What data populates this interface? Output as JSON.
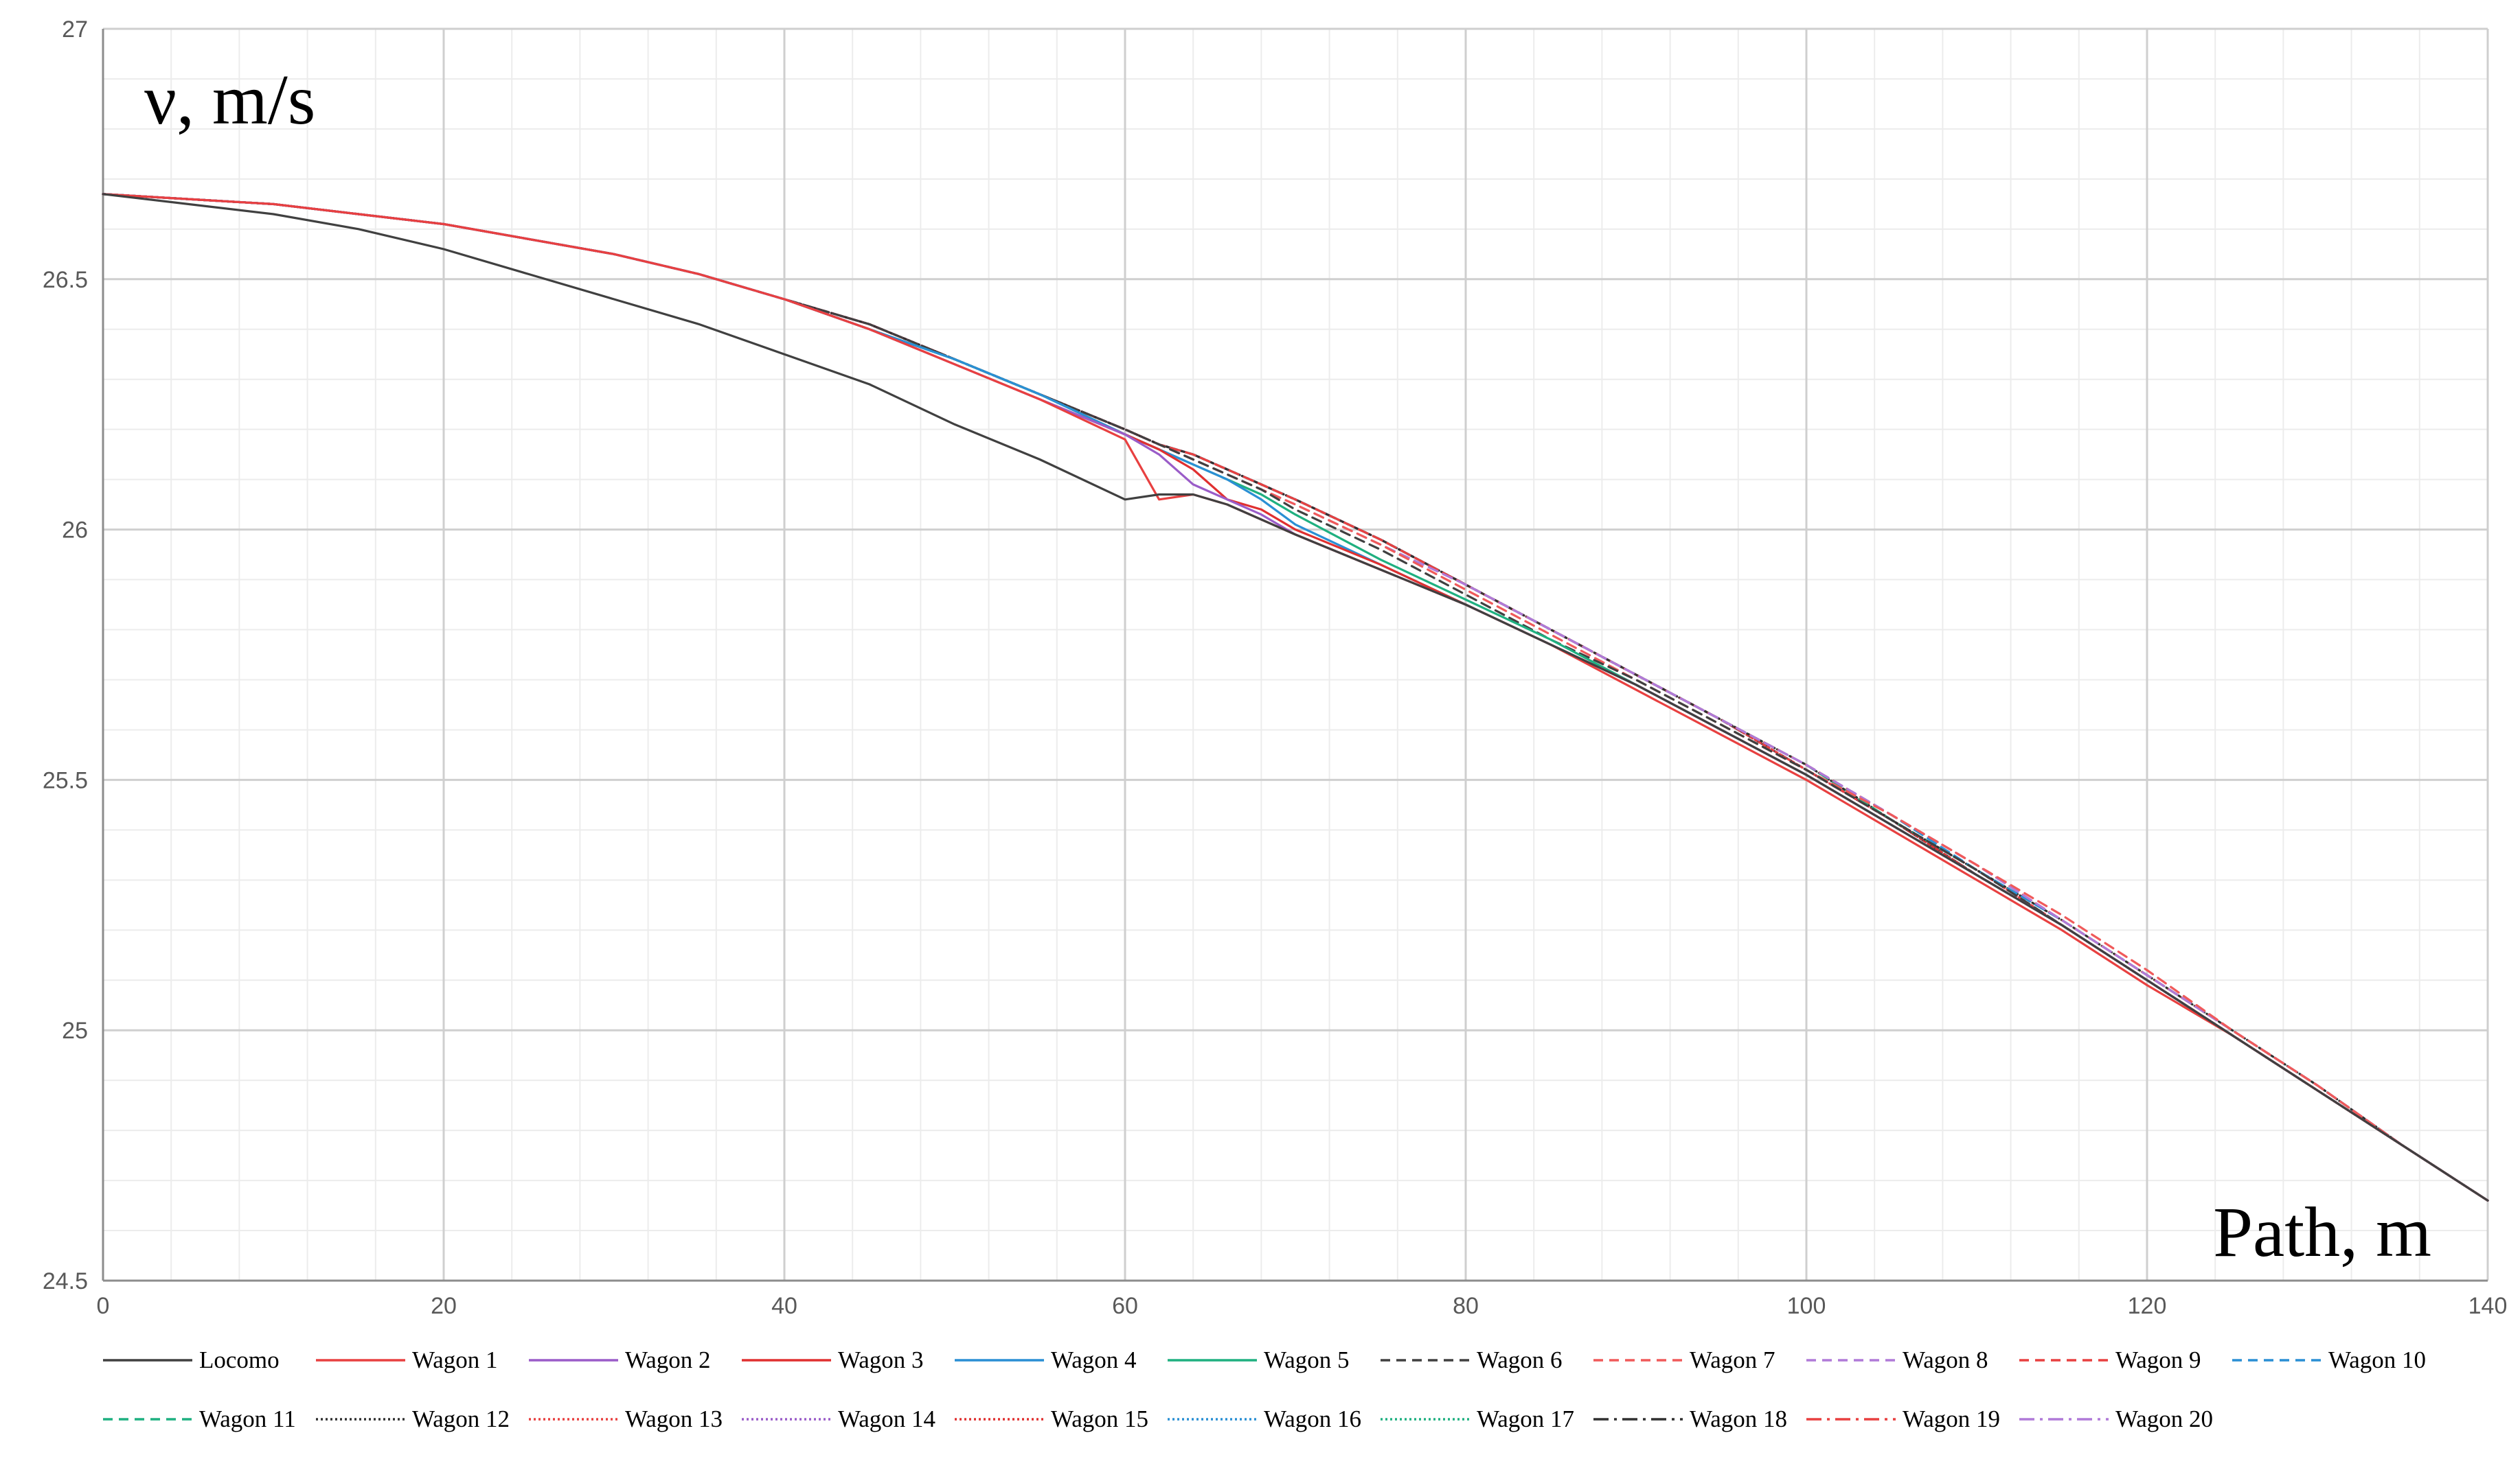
{
  "chart_data": {
    "type": "line",
    "title": "",
    "ylabel": "ν, m/s",
    "xlabel": "Path, m",
    "xlim": [
      0,
      140
    ],
    "ylim": [
      24.5,
      27
    ],
    "x_ticks": [
      0,
      20,
      40,
      60,
      80,
      100,
      120,
      140
    ],
    "y_ticks": [
      24.5,
      25,
      25.5,
      26,
      26.5,
      27
    ],
    "x_tick_labels": [
      "0",
      "20",
      "40",
      "60",
      "80",
      "100",
      "120",
      "140"
    ],
    "y_tick_labels": [
      "24.5",
      "25",
      "25.5",
      "26",
      "26.5",
      "27"
    ],
    "grid": true,
    "minor_grid": true,
    "legend_position": "bottom",
    "x": [
      0,
      5,
      10,
      15,
      20,
      25,
      30,
      35,
      40,
      45,
      50,
      55,
      60,
      62,
      64,
      66,
      68,
      70,
      75,
      80,
      85,
      90,
      95,
      100,
      105,
      110,
      115,
      120,
      125,
      130,
      135,
      140
    ],
    "series": [
      {
        "name": "Locomo",
        "color": "#404040",
        "dash": "",
        "values": [
          26.67,
          26.65,
          26.63,
          26.6,
          26.56,
          26.51,
          26.46,
          26.41,
          26.35,
          26.29,
          26.21,
          26.14,
          26.06,
          26.07,
          26.07,
          26.05,
          26.02,
          25.99,
          25.92,
          25.85,
          25.77,
          25.69,
          25.6,
          25.51,
          25.41,
          25.31,
          25.21,
          25.1,
          24.99,
          24.88,
          24.77,
          24.66
        ]
      },
      {
        "name": "Wagon 1",
        "color": "#e84040",
        "dash": "",
        "values": [
          26.67,
          26.66,
          26.65,
          26.63,
          26.61,
          26.58,
          26.55,
          26.51,
          26.46,
          26.4,
          26.33,
          26.26,
          26.18,
          26.06,
          26.07,
          26.05,
          26.02,
          25.99,
          25.92,
          25.85,
          25.77,
          25.68,
          25.59,
          25.5,
          25.4,
          25.3,
          25.2,
          25.09,
          24.99,
          24.88,
          24.77,
          24.66
        ]
      },
      {
        "name": "Wagon 2",
        "color": "#9a5cc8",
        "dash": "",
        "values": [
          26.67,
          26.66,
          26.65,
          26.63,
          26.61,
          26.58,
          26.55,
          26.51,
          26.46,
          26.4,
          26.33,
          26.26,
          26.19,
          26.15,
          26.09,
          26.06,
          26.03,
          25.99,
          25.92,
          25.85,
          25.77,
          25.69,
          25.6,
          25.51,
          25.41,
          25.31,
          25.21,
          25.1,
          24.99,
          24.88,
          24.77,
          24.66
        ]
      },
      {
        "name": "Wagon 3",
        "color": "#e03030",
        "dash": "",
        "values": [
          26.67,
          26.66,
          26.65,
          26.63,
          26.61,
          26.58,
          26.55,
          26.51,
          26.46,
          26.4,
          26.33,
          26.26,
          26.19,
          26.16,
          26.12,
          26.06,
          26.04,
          26.0,
          25.93,
          25.85,
          25.77,
          25.69,
          25.6,
          25.51,
          25.41,
          25.31,
          25.21,
          25.1,
          24.99,
          24.88,
          24.77,
          24.66
        ]
      },
      {
        "name": "Wagon 4",
        "color": "#2a8fd4",
        "dash": "",
        "values": [
          26.67,
          26.66,
          26.65,
          26.63,
          26.61,
          26.58,
          26.55,
          26.51,
          26.46,
          26.4,
          26.34,
          26.27,
          26.19,
          26.16,
          26.13,
          26.1,
          26.06,
          26.01,
          25.93,
          25.85,
          25.77,
          25.69,
          25.6,
          25.51,
          25.41,
          25.31,
          25.21,
          25.1,
          24.99,
          24.88,
          24.77,
          24.66
        ]
      },
      {
        "name": "Wagon 5",
        "color": "#1fb080",
        "dash": "",
        "values": [
          26.67,
          26.66,
          26.65,
          26.63,
          26.61,
          26.58,
          26.55,
          26.51,
          26.46,
          26.4,
          26.34,
          26.27,
          26.19,
          26.16,
          26.13,
          26.1,
          26.07,
          26.03,
          25.94,
          25.86,
          25.78,
          25.69,
          25.6,
          25.51,
          25.41,
          25.31,
          25.21,
          25.1,
          24.99,
          24.88,
          24.77,
          24.66
        ]
      },
      {
        "name": "Wagon 6",
        "color": "#404040",
        "dash": "14 9",
        "values": [
          26.67,
          26.66,
          26.65,
          26.63,
          26.61,
          26.58,
          26.55,
          26.51,
          26.46,
          26.41,
          26.34,
          26.27,
          26.2,
          26.17,
          26.14,
          26.11,
          26.08,
          26.04,
          25.96,
          25.87,
          25.78,
          25.7,
          25.61,
          25.52,
          25.42,
          25.32,
          25.21,
          25.1,
          24.99,
          24.88,
          24.77,
          24.66
        ]
      },
      {
        "name": "Wagon 7",
        "color": "#f05a5a",
        "dash": "14 9",
        "values": [
          26.67,
          26.66,
          26.65,
          26.63,
          26.61,
          26.58,
          26.55,
          26.51,
          26.46,
          26.41,
          26.34,
          26.27,
          26.2,
          26.17,
          26.14,
          26.11,
          26.08,
          26.05,
          25.97,
          25.88,
          25.79,
          25.7,
          25.61,
          25.52,
          25.43,
          25.33,
          25.23,
          25.12,
          25.0,
          24.89,
          24.77,
          24.66
        ]
      },
      {
        "name": "Wagon 8",
        "color": "#b07ad8",
        "dash": "14 9",
        "values": [
          26.67,
          26.66,
          26.65,
          26.63,
          26.61,
          26.58,
          26.55,
          26.51,
          26.46,
          26.41,
          26.34,
          26.27,
          26.2,
          26.17,
          26.14,
          26.11,
          26.08,
          26.05,
          25.97,
          25.89,
          25.8,
          25.71,
          25.62,
          25.53,
          25.43,
          25.33,
          25.22,
          25.11,
          25.0,
          24.89,
          24.77,
          24.66
        ]
      },
      {
        "name": "Wagon 9",
        "color": "#e84040",
        "dash": "14 9",
        "values": [
          26.67,
          26.66,
          26.65,
          26.63,
          26.61,
          26.58,
          26.55,
          26.51,
          26.46,
          26.41,
          26.34,
          26.27,
          26.2,
          26.17,
          26.15,
          26.12,
          26.09,
          26.06,
          25.98,
          25.89,
          25.8,
          25.71,
          25.62,
          25.53,
          25.43,
          25.33,
          25.22,
          25.11,
          25.0,
          24.89,
          24.77,
          24.66
        ]
      },
      {
        "name": "Wagon 10",
        "color": "#2a8fd4",
        "dash": "14 9",
        "values": [
          26.67,
          26.66,
          26.65,
          26.63,
          26.61,
          26.58,
          26.55,
          26.51,
          26.46,
          26.41,
          26.34,
          26.27,
          26.2,
          26.17,
          26.15,
          26.12,
          26.09,
          26.06,
          25.98,
          25.89,
          25.8,
          25.71,
          25.62,
          25.53,
          25.43,
          25.32,
          25.22,
          25.11,
          25.0,
          24.89,
          24.77,
          24.66
        ]
      },
      {
        "name": "Wagon 11",
        "color": "#1fb080",
        "dash": "14 9",
        "values": [
          26.67,
          26.66,
          26.65,
          26.63,
          26.61,
          26.58,
          26.55,
          26.51,
          26.46,
          26.41,
          26.34,
          26.27,
          26.2,
          26.17,
          26.15,
          26.12,
          26.09,
          26.06,
          25.98,
          25.89,
          25.8,
          25.71,
          25.62,
          25.53,
          25.42,
          25.32,
          25.22,
          25.11,
          25.0,
          24.89,
          24.77,
          24.66
        ]
      },
      {
        "name": "Wagon 12",
        "color": "#303030",
        "dash": "3 4",
        "values": [
          26.67,
          26.66,
          26.65,
          26.63,
          26.61,
          26.58,
          26.55,
          26.51,
          26.46,
          26.41,
          26.34,
          26.27,
          26.2,
          26.17,
          26.15,
          26.12,
          26.09,
          26.06,
          25.98,
          25.89,
          25.8,
          25.71,
          25.62,
          25.53,
          25.42,
          25.32,
          25.22,
          25.11,
          25.0,
          24.89,
          24.77,
          24.66
        ]
      },
      {
        "name": "Wagon 13",
        "color": "#e84040",
        "dash": "3 4",
        "values": [
          26.67,
          26.66,
          26.65,
          26.63,
          26.61,
          26.58,
          26.55,
          26.51,
          26.46,
          26.41,
          26.34,
          26.27,
          26.2,
          26.17,
          26.15,
          26.12,
          26.09,
          26.06,
          25.98,
          25.89,
          25.8,
          25.71,
          25.62,
          25.52,
          25.42,
          25.32,
          25.21,
          25.1,
          24.99,
          24.88,
          24.77,
          24.66
        ]
      },
      {
        "name": "Wagon 14",
        "color": "#9a5cc8",
        "dash": "3 4",
        "values": [
          26.67,
          26.66,
          26.65,
          26.63,
          26.61,
          26.58,
          26.55,
          26.51,
          26.46,
          26.41,
          26.34,
          26.27,
          26.2,
          26.17,
          26.15,
          26.12,
          26.09,
          26.06,
          25.98,
          25.89,
          25.8,
          25.71,
          25.62,
          25.52,
          25.42,
          25.32,
          25.21,
          25.1,
          24.99,
          24.88,
          24.77,
          24.66
        ]
      },
      {
        "name": "Wagon 15",
        "color": "#e03030",
        "dash": "3 4",
        "values": [
          26.67,
          26.66,
          26.65,
          26.63,
          26.61,
          26.58,
          26.55,
          26.51,
          26.46,
          26.41,
          26.34,
          26.27,
          26.2,
          26.17,
          26.15,
          26.12,
          26.09,
          26.06,
          25.98,
          25.89,
          25.8,
          25.71,
          25.62,
          25.52,
          25.42,
          25.31,
          25.21,
          25.1,
          24.99,
          24.88,
          24.77,
          24.66
        ]
      },
      {
        "name": "Wagon 16",
        "color": "#2a8fd4",
        "dash": "3 4",
        "values": [
          26.67,
          26.66,
          26.65,
          26.63,
          26.61,
          26.58,
          26.55,
          26.51,
          26.46,
          26.41,
          26.34,
          26.27,
          26.2,
          26.17,
          26.15,
          26.12,
          26.09,
          26.06,
          25.98,
          25.89,
          25.8,
          25.71,
          25.62,
          25.52,
          25.42,
          25.31,
          25.21,
          25.1,
          24.99,
          24.88,
          24.77,
          24.66
        ]
      },
      {
        "name": "Wagon 17",
        "color": "#1fb080",
        "dash": "3 4",
        "values": [
          26.67,
          26.66,
          26.65,
          26.63,
          26.61,
          26.58,
          26.55,
          26.51,
          26.46,
          26.41,
          26.34,
          26.27,
          26.2,
          26.17,
          26.15,
          26.12,
          26.09,
          26.06,
          25.98,
          25.89,
          25.8,
          25.71,
          25.62,
          25.52,
          25.42,
          25.31,
          25.21,
          25.1,
          24.99,
          24.88,
          24.77,
          24.66
        ]
      },
      {
        "name": "Wagon 18",
        "color": "#303030",
        "dash": "22 8 4 8",
        "values": [
          26.67,
          26.66,
          26.65,
          26.63,
          26.61,
          26.58,
          26.55,
          26.51,
          26.46,
          26.41,
          26.34,
          26.27,
          26.2,
          26.17,
          26.15,
          26.12,
          26.09,
          26.06,
          25.98,
          25.89,
          25.8,
          25.71,
          25.62,
          25.52,
          25.42,
          25.31,
          25.21,
          25.1,
          24.99,
          24.88,
          24.77,
          24.66
        ]
      },
      {
        "name": "Wagon 19",
        "color": "#e84040",
        "dash": "22 8 4 8",
        "values": [
          26.67,
          26.66,
          26.65,
          26.63,
          26.61,
          26.58,
          26.55,
          26.51,
          26.46,
          26.41,
          26.34,
          26.27,
          26.2,
          26.17,
          26.15,
          26.12,
          26.09,
          26.06,
          25.98,
          25.89,
          25.8,
          25.71,
          25.62,
          25.52,
          25.42,
          25.31,
          25.21,
          25.1,
          24.99,
          24.88,
          24.77,
          24.66
        ]
      },
      {
        "name": "Wagon 20",
        "color": "#b07ad8",
        "dash": "22 8 4 8",
        "values": [
          26.67,
          26.66,
          26.65,
          26.63,
          26.61,
          26.58,
          26.55,
          26.51,
          26.46,
          26.41,
          26.34,
          26.27,
          26.2,
          26.17,
          26.15,
          26.12,
          26.09,
          26.06,
          25.98,
          25.89,
          25.8,
          25.71,
          25.62,
          25.52,
          25.42,
          25.31,
          25.21,
          25.1,
          24.99,
          24.88,
          24.77,
          24.66
        ]
      }
    ]
  }
}
